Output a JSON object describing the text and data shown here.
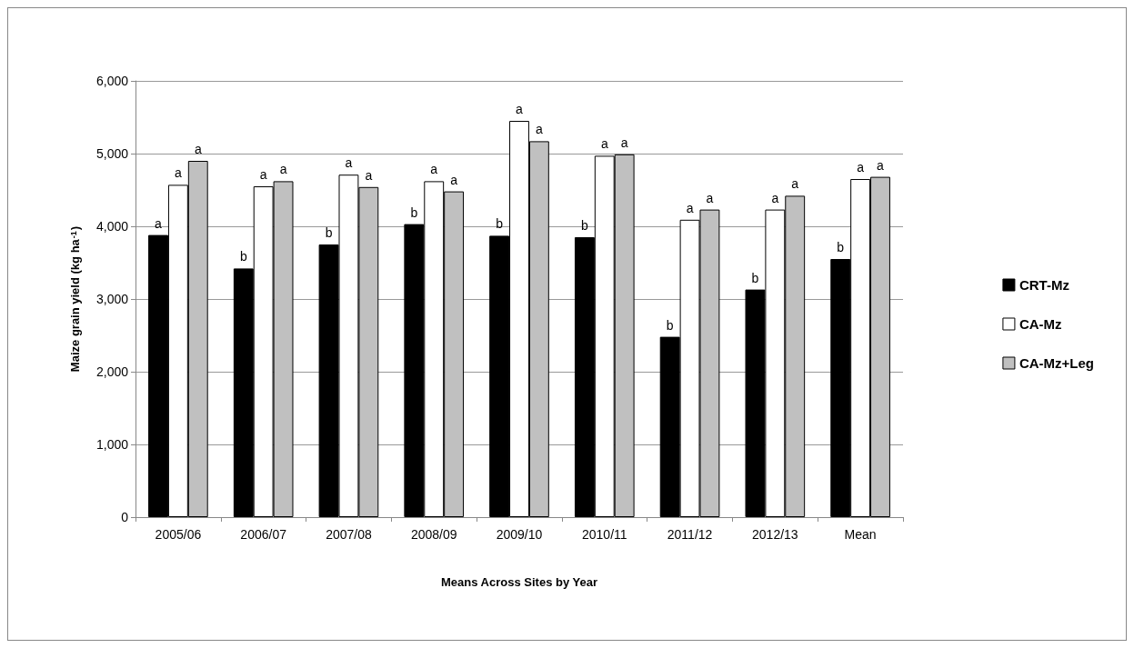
{
  "chart_data": {
    "type": "bar",
    "xlabel": "Means Across Sites by Year",
    "ylabel": "Maize grain yield (kg ha$^{-1}$)",
    "categories": [
      "2005/06",
      "2006/07",
      "2007/08",
      "2008/09",
      "2009/10",
      "2010/11",
      "2011/12",
      "2012/13",
      "Mean"
    ],
    "series": [
      {
        "name": "CRT-Mz",
        "color": "#000000",
        "values": [
          3880,
          3420,
          3750,
          4030,
          3870,
          3850,
          2480,
          3130,
          3550
        ],
        "value_labels": [
          "a",
          "b",
          "b",
          "b",
          "b",
          "b",
          "b",
          "b",
          "b"
        ]
      },
      {
        "name": "CA-Mz",
        "color": "#ffffff",
        "values": [
          4570,
          4550,
          4710,
          4620,
          5450,
          4970,
          4090,
          4230,
          4650
        ],
        "value_labels": [
          "a",
          "a",
          "a",
          "a",
          "a",
          "a",
          "a",
          "a",
          "a"
        ]
      },
      {
        "name": "CA-Mz+Leg",
        "color": "#c0c0c0",
        "values": [
          4900,
          4620,
          4540,
          4480,
          5170,
          4990,
          4230,
          4420,
          4680
        ],
        "value_labels": [
          "a",
          "a",
          "a",
          "a",
          "a",
          "a",
          "a",
          "a",
          "a"
        ]
      }
    ],
    "ylim": [
      0,
      6000
    ],
    "yticks": [
      0,
      {
        "value": 1000,
        "label": "1,000"
      },
      {
        "value": 2000,
        "label": "2,000"
      },
      {
        "value": 3000,
        "label": "3,000"
      },
      {
        "value": 4000,
        "label": "4,000"
      },
      {
        "value": 5000,
        "label": "5,000"
      },
      {
        "value": 6000,
        "label": "6,000"
      }
    ],
    "grid": "y",
    "legend": "right"
  }
}
